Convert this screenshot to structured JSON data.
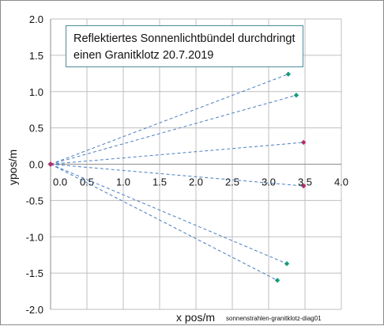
{
  "chart_data": {
    "type": "scatter",
    "title_lines": [
      "Reflektiertes Sonnenlichtbündel durchdringt",
      "einen Granitklotz 20.7.2019"
    ],
    "xlabel": "x pos/m",
    "ylabel": "ypos/m",
    "caption": "sonnenstrahlen-granitklotz-diag01",
    "xlim": [
      0,
      4.0
    ],
    "ylim": [
      -2.0,
      2.0
    ],
    "x_ticks": [
      "0.0",
      "0.5",
      "1.0",
      "1.5",
      "2.0",
      "2.5",
      "3.0",
      "3.5",
      "4.0"
    ],
    "y_ticks": [
      "2.0",
      "1.5",
      "1.0",
      "0.5",
      "0.0",
      "-0.5",
      "-1.0",
      "-1.5",
      "-2.0"
    ],
    "grid": true,
    "origin": [
      0.0,
      0.0
    ],
    "rays": [
      {
        "x": 3.27,
        "y": 1.24,
        "color": "#1a9a7a"
      },
      {
        "x": 3.38,
        "y": 0.95,
        "color": "#1a9a7a"
      },
      {
        "x": 3.48,
        "y": 0.3,
        "color": "#b0306a"
      },
      {
        "x": 3.48,
        "y": -0.3,
        "color": "#b0306a"
      },
      {
        "x": 3.25,
        "y": -1.37,
        "color": "#1a9a7a"
      },
      {
        "x": 3.12,
        "y": -1.6,
        "color": "#1a9a7a"
      }
    ],
    "origin_color": "#b0306a",
    "ray_line_color": "#4a7fc0"
  }
}
